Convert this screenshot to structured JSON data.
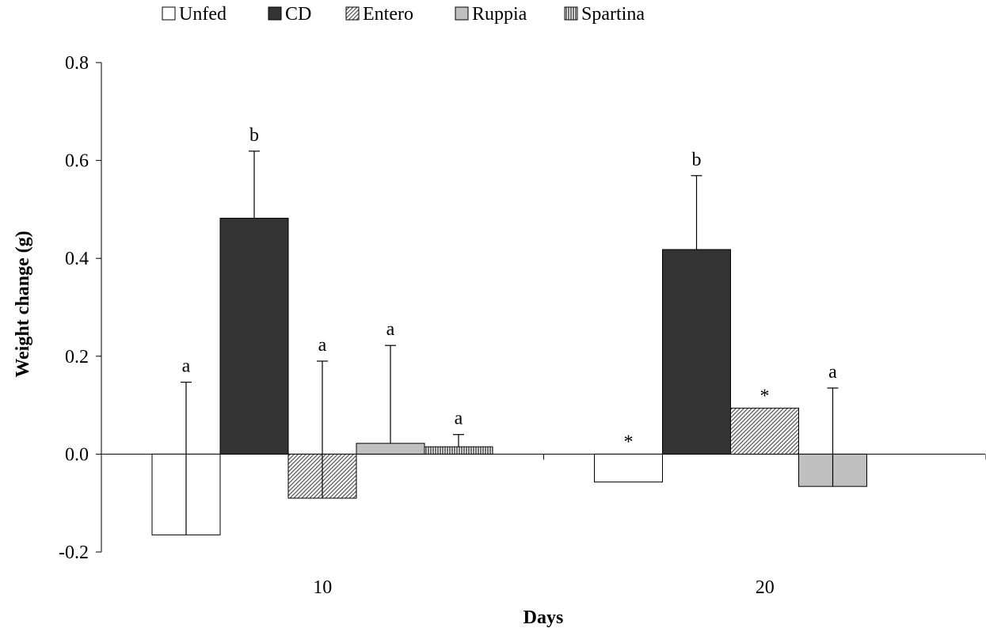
{
  "chart_data": {
    "type": "bar",
    "title": "",
    "xlabel": "Days",
    "ylabel": "Weight change (g)",
    "categories": [
      "10",
      "20"
    ],
    "ylim": [
      -0.2,
      0.8
    ],
    "yticks": [
      "-0.2",
      "0.0",
      "0.2",
      "0.4",
      "0.6",
      "0.8"
    ],
    "legend_position": "top",
    "series": [
      {
        "name": "Unfed",
        "fill": "#ffffff",
        "pattern": "none",
        "values": [
          -0.165,
          -0.057
        ],
        "error": [
          0.147,
          null
        ],
        "labels": [
          "a",
          "*"
        ]
      },
      {
        "name": "CD",
        "fill": "#333333",
        "pattern": "none",
        "values": [
          0.482,
          0.418
        ],
        "error": [
          0.619,
          0.569
        ],
        "labels": [
          "b",
          "b"
        ]
      },
      {
        "name": "Entero",
        "fill": "#ffffff",
        "pattern": "diagonal",
        "values": [
          -0.09,
          0.094
        ],
        "error": [
          0.19,
          null
        ],
        "labels": [
          "a",
          "*"
        ]
      },
      {
        "name": "Ruppia",
        "fill": "#c0c0c0",
        "pattern": "none",
        "values": [
          0.022,
          -0.066
        ],
        "error": [
          0.222,
          0.135
        ],
        "labels": [
          "a",
          "a"
        ]
      },
      {
        "name": "Spartina",
        "fill": "#ffffff",
        "pattern": "vertical",
        "values": [
          0.015,
          null
        ],
        "error": [
          0.04,
          null
        ],
        "labels": [
          "a",
          null
        ]
      }
    ]
  }
}
